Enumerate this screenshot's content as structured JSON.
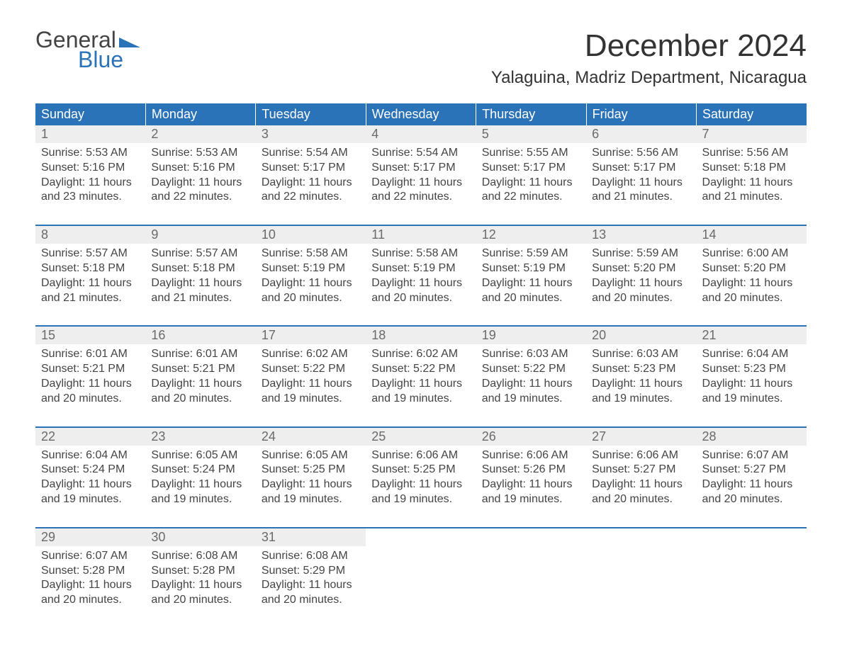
{
  "logo": {
    "top": "General",
    "bottom": "Blue",
    "tri_color": "#2b73b8"
  },
  "month_title": "December 2024",
  "location": "Yalaguina, Madriz Department, Nicaragua",
  "colors": {
    "header_bg": "#2b73b8",
    "header_fg": "#ffffff",
    "daynum_bg": "#eeeeee",
    "daynum_fg": "#6a6a6a",
    "rule": "#2b73b8"
  },
  "days_of_week": [
    "Sunday",
    "Monday",
    "Tuesday",
    "Wednesday",
    "Thursday",
    "Friday",
    "Saturday"
  ],
  "weeks": [
    [
      {
        "n": 1,
        "sunrise": "5:53 AM",
        "sunset": "5:16 PM",
        "daylight_h": 11,
        "daylight_m": 23
      },
      {
        "n": 2,
        "sunrise": "5:53 AM",
        "sunset": "5:16 PM",
        "daylight_h": 11,
        "daylight_m": 22
      },
      {
        "n": 3,
        "sunrise": "5:54 AM",
        "sunset": "5:17 PM",
        "daylight_h": 11,
        "daylight_m": 22
      },
      {
        "n": 4,
        "sunrise": "5:54 AM",
        "sunset": "5:17 PM",
        "daylight_h": 11,
        "daylight_m": 22
      },
      {
        "n": 5,
        "sunrise": "5:55 AM",
        "sunset": "5:17 PM",
        "daylight_h": 11,
        "daylight_m": 22
      },
      {
        "n": 6,
        "sunrise": "5:56 AM",
        "sunset": "5:17 PM",
        "daylight_h": 11,
        "daylight_m": 21
      },
      {
        "n": 7,
        "sunrise": "5:56 AM",
        "sunset": "5:18 PM",
        "daylight_h": 11,
        "daylight_m": 21
      }
    ],
    [
      {
        "n": 8,
        "sunrise": "5:57 AM",
        "sunset": "5:18 PM",
        "daylight_h": 11,
        "daylight_m": 21
      },
      {
        "n": 9,
        "sunrise": "5:57 AM",
        "sunset": "5:18 PM",
        "daylight_h": 11,
        "daylight_m": 21
      },
      {
        "n": 10,
        "sunrise": "5:58 AM",
        "sunset": "5:19 PM",
        "daylight_h": 11,
        "daylight_m": 20
      },
      {
        "n": 11,
        "sunrise": "5:58 AM",
        "sunset": "5:19 PM",
        "daylight_h": 11,
        "daylight_m": 20
      },
      {
        "n": 12,
        "sunrise": "5:59 AM",
        "sunset": "5:19 PM",
        "daylight_h": 11,
        "daylight_m": 20
      },
      {
        "n": 13,
        "sunrise": "5:59 AM",
        "sunset": "5:20 PM",
        "daylight_h": 11,
        "daylight_m": 20
      },
      {
        "n": 14,
        "sunrise": "6:00 AM",
        "sunset": "5:20 PM",
        "daylight_h": 11,
        "daylight_m": 20
      }
    ],
    [
      {
        "n": 15,
        "sunrise": "6:01 AM",
        "sunset": "5:21 PM",
        "daylight_h": 11,
        "daylight_m": 20
      },
      {
        "n": 16,
        "sunrise": "6:01 AM",
        "sunset": "5:21 PM",
        "daylight_h": 11,
        "daylight_m": 20
      },
      {
        "n": 17,
        "sunrise": "6:02 AM",
        "sunset": "5:22 PM",
        "daylight_h": 11,
        "daylight_m": 19
      },
      {
        "n": 18,
        "sunrise": "6:02 AM",
        "sunset": "5:22 PM",
        "daylight_h": 11,
        "daylight_m": 19
      },
      {
        "n": 19,
        "sunrise": "6:03 AM",
        "sunset": "5:22 PM",
        "daylight_h": 11,
        "daylight_m": 19
      },
      {
        "n": 20,
        "sunrise": "6:03 AM",
        "sunset": "5:23 PM",
        "daylight_h": 11,
        "daylight_m": 19
      },
      {
        "n": 21,
        "sunrise": "6:04 AM",
        "sunset": "5:23 PM",
        "daylight_h": 11,
        "daylight_m": 19
      }
    ],
    [
      {
        "n": 22,
        "sunrise": "6:04 AM",
        "sunset": "5:24 PM",
        "daylight_h": 11,
        "daylight_m": 19
      },
      {
        "n": 23,
        "sunrise": "6:05 AM",
        "sunset": "5:24 PM",
        "daylight_h": 11,
        "daylight_m": 19
      },
      {
        "n": 24,
        "sunrise": "6:05 AM",
        "sunset": "5:25 PM",
        "daylight_h": 11,
        "daylight_m": 19
      },
      {
        "n": 25,
        "sunrise": "6:06 AM",
        "sunset": "5:25 PM",
        "daylight_h": 11,
        "daylight_m": 19
      },
      {
        "n": 26,
        "sunrise": "6:06 AM",
        "sunset": "5:26 PM",
        "daylight_h": 11,
        "daylight_m": 19
      },
      {
        "n": 27,
        "sunrise": "6:06 AM",
        "sunset": "5:27 PM",
        "daylight_h": 11,
        "daylight_m": 20
      },
      {
        "n": 28,
        "sunrise": "6:07 AM",
        "sunset": "5:27 PM",
        "daylight_h": 11,
        "daylight_m": 20
      }
    ],
    [
      {
        "n": 29,
        "sunrise": "6:07 AM",
        "sunset": "5:28 PM",
        "daylight_h": 11,
        "daylight_m": 20
      },
      {
        "n": 30,
        "sunrise": "6:08 AM",
        "sunset": "5:28 PM",
        "daylight_h": 11,
        "daylight_m": 20
      },
      {
        "n": 31,
        "sunrise": "6:08 AM",
        "sunset": "5:29 PM",
        "daylight_h": 11,
        "daylight_m": 20
      },
      null,
      null,
      null,
      null
    ]
  ],
  "labels": {
    "sunrise": "Sunrise",
    "sunset": "Sunset",
    "daylight": "Daylight",
    "hours": "hours",
    "and": "and",
    "minutes": "minutes."
  }
}
